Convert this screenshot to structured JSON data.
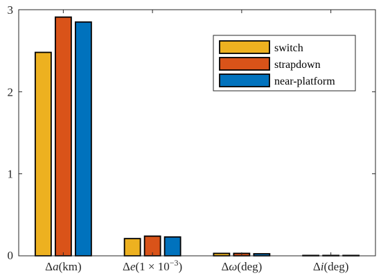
{
  "chart_data": {
    "type": "bar",
    "categories": [
      {
        "pre": "Δ",
        "var": "a",
        "post": "(km)"
      },
      {
        "pre": "Δ",
        "var": "e",
        "post": "(1 × 10",
        "sup": "−3",
        "tail": ")"
      },
      {
        "pre": "Δ",
        "var": "ω",
        "post": "(deg)"
      },
      {
        "pre": "Δ",
        "var": "i",
        "post": "(deg)"
      }
    ],
    "series": [
      {
        "name": "switch",
        "color": "#EDB120",
        "values": [
          2.48,
          0.21,
          0.03,
          0.005
        ]
      },
      {
        "name": "strapdown",
        "color": "#D95319",
        "values": [
          2.91,
          0.24,
          0.03,
          0.005
        ]
      },
      {
        "name": "near-platform",
        "color": "#0072BD",
        "values": [
          2.85,
          0.23,
          0.025,
          0.005
        ]
      }
    ],
    "ylim": [
      0,
      3
    ],
    "yticks": [
      "0",
      "1",
      "2",
      "3"
    ],
    "legend": "top-right",
    "title": "",
    "xlabel": "",
    "ylabel": "",
    "grid": false
  }
}
